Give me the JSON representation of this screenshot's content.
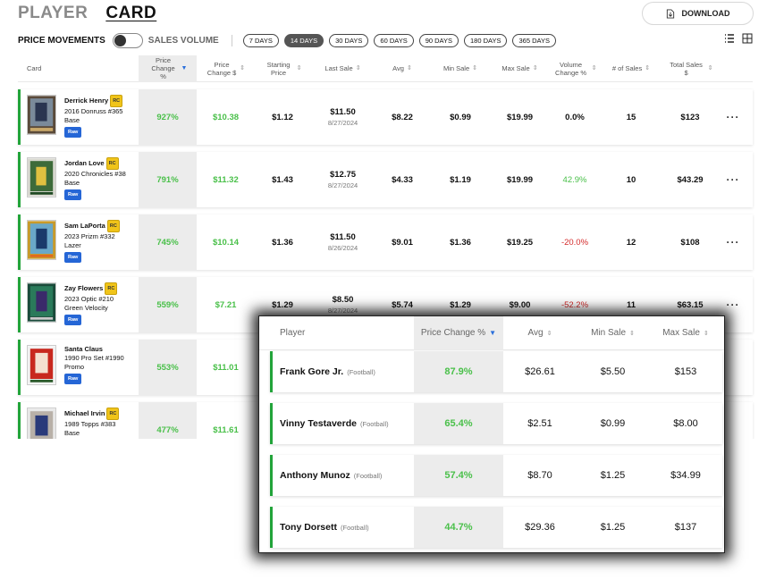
{
  "header": {
    "tab_player": "PLAYER",
    "tab_card": "CARD",
    "download_label": "DOWNLOAD"
  },
  "controls": {
    "price_movements": "PRICE MOVEMENTS",
    "sales_volume": "SALES VOLUME",
    "ranges": [
      "7 DAYS",
      "14 DAYS",
      "30 DAYS",
      "60 DAYS",
      "90 DAYS",
      "180 DAYS",
      "365 DAYS"
    ],
    "active_range": "14 DAYS"
  },
  "table": {
    "headers": {
      "card": "Card",
      "price_change_pct": "Price Change %",
      "price_change_usd": "Price Change $",
      "starting_price": "Starting Price",
      "last_sale": "Last Sale",
      "avg": "Avg",
      "min_sale": "Min Sale",
      "max_sale": "Max Sale",
      "volume_change": "Volume Change %",
      "num_sales": "# of Sales",
      "total_sales": "Total Sales $"
    },
    "rows": [
      {
        "name": "Derrick Henry",
        "rc": "RC",
        "set": "2016 Donruss #365",
        "variant": "Base",
        "grade": "Raw",
        "pct": "927%",
        "usd": "$10.38",
        "start": "$1.12",
        "last": "$11.50",
        "last_date": "8/27/2024",
        "avg": "$8.22",
        "min": "$0.99",
        "max": "$19.99",
        "vol": "0.0%",
        "sales": "15",
        "total": "$123",
        "more": "···"
      },
      {
        "name": "Jordan Love",
        "rc": "RC",
        "set": "2020 Chronicles #38",
        "variant": "Base",
        "grade": "Raw",
        "pct": "791%",
        "usd": "$11.32",
        "start": "$1.43",
        "last": "$12.75",
        "last_date": "8/27/2024",
        "avg": "$4.33",
        "min": "$1.19",
        "max": "$19.99",
        "vol": "42.9%",
        "sales": "10",
        "total": "$43.29",
        "more": "···"
      },
      {
        "name": "Sam LaPorta",
        "rc": "RC",
        "set": "2023 Prizm #332",
        "variant": "Lazer",
        "grade": "Raw",
        "pct": "745%",
        "usd": "$10.14",
        "start": "$1.36",
        "last": "$11.50",
        "last_date": "8/26/2024",
        "avg": "$9.01",
        "min": "$1.36",
        "max": "$19.25",
        "vol": "-20.0%",
        "sales": "12",
        "total": "$108",
        "more": "···"
      },
      {
        "name": "Zay Flowers",
        "rc": "RC",
        "set": "2023 Optic #210",
        "variant": "Green Velocity",
        "grade": "Raw",
        "pct": "559%",
        "usd": "$7.21",
        "start": "$1.29",
        "last": "$8.50",
        "last_date": "8/27/2024",
        "avg": "$5.74",
        "min": "$1.29",
        "max": "$9.00",
        "vol": "-52.2%",
        "sales": "11",
        "total": "$63.15",
        "more": "···"
      },
      {
        "name": "Santa Claus",
        "rc": "",
        "set": "1990 Pro Set #1990",
        "variant": "Promo",
        "grade": "Raw",
        "pct": "553%",
        "usd": "$11.01",
        "start": "",
        "last": "",
        "last_date": "",
        "avg": "",
        "min": "",
        "max": "",
        "vol": "",
        "sales": "",
        "total": "",
        "more": ""
      },
      {
        "name": "Michael Irvin",
        "rc": "RC",
        "set": "1989 Topps #383",
        "variant": "Base",
        "grade": "",
        "pct": "477%",
        "usd": "$11.61",
        "start": "",
        "last": "",
        "last_date": "",
        "avg": "",
        "min": "",
        "max": "",
        "vol": "",
        "sales": "",
        "total": "",
        "more": ""
      }
    ]
  },
  "popup": {
    "headers": {
      "player": "Player",
      "pct": "Price Change %",
      "avg": "Avg",
      "min": "Min Sale",
      "max": "Max Sale"
    },
    "rows": [
      {
        "name": "Frank Gore Jr.",
        "sport": "(Football)",
        "pct": "87.9%",
        "avg": "$26.61",
        "min": "$5.50",
        "max": "$153"
      },
      {
        "name": "Vinny Testaverde",
        "sport": "(Football)",
        "pct": "65.4%",
        "avg": "$2.51",
        "min": "$0.99",
        "max": "$8.00"
      },
      {
        "name": "Anthony Munoz",
        "sport": "(Football)",
        "pct": "57.4%",
        "avg": "$8.70",
        "min": "$1.25",
        "max": "$34.99"
      },
      {
        "name": "Tony Dorsett",
        "sport": "(Football)",
        "pct": "44.7%",
        "avg": "$29.36",
        "min": "$1.25",
        "max": "$137"
      }
    ]
  },
  "colors": {
    "accent_green": "#22a43a",
    "positive": "#4ac04a",
    "negative": "#d42a2a",
    "raw_badge": "#2566d6",
    "rc_badge": "#f0c419"
  }
}
